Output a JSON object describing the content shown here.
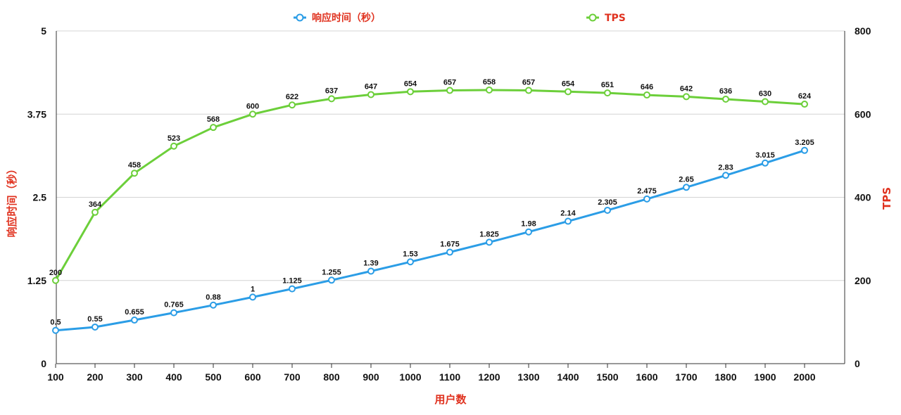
{
  "chart_data": {
    "type": "line",
    "categories": [
      "100",
      "200",
      "300",
      "400",
      "500",
      "600",
      "700",
      "800",
      "900",
      "1000",
      "1100",
      "1200",
      "1300",
      "1400",
      "1500",
      "1600",
      "1700",
      "1800",
      "1900",
      "2000"
    ],
    "series": [
      {
        "name": "响应时间（秒）",
        "axis": "left",
        "color": "#2b9de6",
        "values": [
          0.5,
          0.55,
          0.655,
          0.765,
          0.88,
          1,
          1.125,
          1.255,
          1.39,
          1.53,
          1.675,
          1.825,
          1.98,
          2.14,
          2.305,
          2.475,
          2.65,
          2.83,
          3.015,
          3.205
        ],
        "labels": [
          "0.5",
          "0.55",
          "0.655",
          "0.765",
          "0.88",
          "1",
          "1.125",
          "1.255",
          "1.39",
          "1.53",
          "1.675",
          "1.825",
          "1.98",
          "2.14",
          "2.305",
          "2.475",
          "2.65",
          "2.83",
          "3.015",
          "3.205"
        ]
      },
      {
        "name": "TPS",
        "axis": "right",
        "color": "#6ccf3a",
        "values": [
          200,
          364,
          458,
          523,
          568,
          600,
          622,
          637,
          647,
          654,
          657,
          658,
          657,
          654,
          651,
          646,
          642,
          636,
          630,
          624
        ],
        "labels": [
          "200",
          "364",
          "458",
          "523",
          "568",
          "600",
          "622",
          "637",
          "647",
          "654",
          "657",
          "658",
          "657",
          "654",
          "651",
          "646",
          "642",
          "636",
          "630",
          "624"
        ]
      }
    ],
    "xlabel": "用户数",
    "ylabel_left": "响应时间（秒）",
    "ylabel_right": "TPS",
    "ylim_left": [
      0,
      5
    ],
    "ylim_right": [
      0,
      800
    ],
    "yticks_left": [
      "0",
      "1.25",
      "2.5",
      "3.75",
      "5"
    ],
    "yticks_right": [
      "0",
      "200",
      "400",
      "600",
      "800"
    ],
    "grid": true,
    "legend": "top-center",
    "axis_title_color": "#e0321f"
  }
}
